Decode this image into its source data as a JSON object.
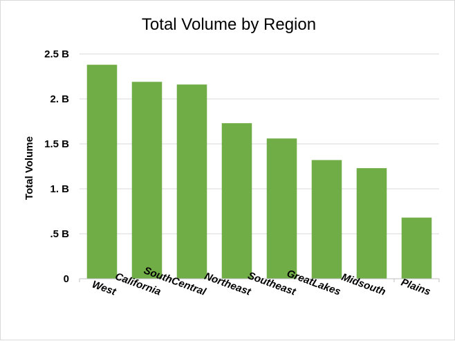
{
  "chart_data": {
    "type": "bar",
    "title": "Total Volume by Region",
    "xlabel": "",
    "ylabel": "Total Volume",
    "categories": [
      "West",
      "California",
      "SouthCentral",
      "Northeast",
      "Southeast",
      "GreatLakes",
      "Midsouth",
      "Plains"
    ],
    "values": [
      2.38,
      2.19,
      2.16,
      1.73,
      1.56,
      1.32,
      1.23,
      0.68
    ],
    "value_unit": "B",
    "ylim": [
      0,
      2.5
    ],
    "yticks": [
      0,
      0.5,
      1,
      1.5,
      2,
      2.5
    ],
    "ytick_labels": [
      "0",
      ".5 B",
      "1. B",
      "1.5 B",
      "2. B",
      "2.5 B"
    ],
    "grid": true,
    "legend": "none",
    "colors": {
      "bar": "#70ad47",
      "grid": "#d9d9d9",
      "axis": "#bfbfbf"
    }
  }
}
